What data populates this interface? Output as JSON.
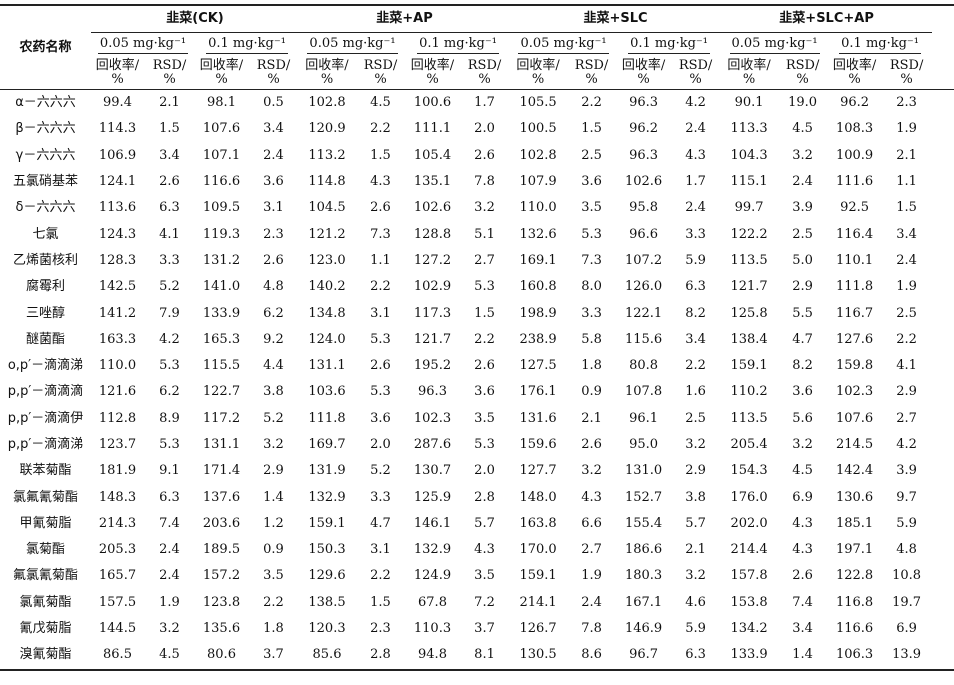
{
  "table": {
    "name_header": "农药名称",
    "groups": [
      "韭菜(CK)",
      "韭菜+AP",
      "韭菜+SLC",
      "韭菜+SLC+AP"
    ],
    "levels": [
      "0.05 mg·kg⁻¹",
      "0.1 mg·kg⁻¹"
    ],
    "metrics": [
      {
        "line1": "回收率/",
        "line2": "%"
      },
      {
        "line1": "RSD/",
        "line2": "%"
      }
    ],
    "rows": [
      {
        "name": "α－六六六",
        "values": [
          "99.4",
          "2.1",
          "98.1",
          "0.5",
          "102.8",
          "4.5",
          "100.6",
          "1.7",
          "105.5",
          "2.2",
          "96.3",
          "4.2",
          "90.1",
          "19.0",
          "96.2",
          "2.3"
        ]
      },
      {
        "name": "β－六六六",
        "values": [
          "114.3",
          "1.5",
          "107.6",
          "3.4",
          "120.9",
          "2.2",
          "111.1",
          "2.0",
          "100.5",
          "1.5",
          "96.2",
          "2.4",
          "113.3",
          "4.5",
          "108.3",
          "1.9"
        ]
      },
      {
        "name": "γ－六六六",
        "values": [
          "106.9",
          "3.4",
          "107.1",
          "2.4",
          "113.2",
          "1.5",
          "105.4",
          "2.6",
          "102.8",
          "2.5",
          "96.3",
          "4.3",
          "104.3",
          "3.2",
          "100.9",
          "2.1"
        ]
      },
      {
        "name": "五氯硝基苯",
        "values": [
          "124.1",
          "2.6",
          "116.6",
          "3.6",
          "114.8",
          "4.3",
          "135.1",
          "7.8",
          "107.9",
          "3.6",
          "102.6",
          "1.7",
          "115.1",
          "2.4",
          "111.6",
          "1.1"
        ]
      },
      {
        "name": "δ－六六六",
        "values": [
          "113.6",
          "6.3",
          "109.5",
          "3.1",
          "104.5",
          "2.6",
          "102.6",
          "3.2",
          "110.0",
          "3.5",
          "95.8",
          "2.4",
          "99.7",
          "3.9",
          "92.5",
          "1.5"
        ]
      },
      {
        "name": "七氯",
        "values": [
          "124.3",
          "4.1",
          "119.3",
          "2.3",
          "121.2",
          "7.3",
          "128.8",
          "5.1",
          "132.6",
          "5.3",
          "96.6",
          "3.3",
          "122.2",
          "2.5",
          "116.4",
          "3.4"
        ]
      },
      {
        "name": "乙烯菌核利",
        "values": [
          "128.3",
          "3.3",
          "131.2",
          "2.6",
          "123.0",
          "1.1",
          "127.2",
          "2.7",
          "169.1",
          "7.3",
          "107.2",
          "5.9",
          "113.5",
          "5.0",
          "110.1",
          "2.4"
        ]
      },
      {
        "name": "腐霉利",
        "values": [
          "142.5",
          "5.2",
          "141.0",
          "4.8",
          "140.2",
          "2.2",
          "102.9",
          "5.3",
          "160.8",
          "8.0",
          "126.0",
          "6.3",
          "121.7",
          "2.9",
          "111.8",
          "1.9"
        ]
      },
      {
        "name": "三唑醇",
        "values": [
          "141.2",
          "7.9",
          "133.9",
          "6.2",
          "134.8",
          "3.1",
          "117.3",
          "1.5",
          "198.9",
          "3.3",
          "122.1",
          "8.2",
          "125.8",
          "5.5",
          "116.7",
          "2.5"
        ]
      },
      {
        "name": "醚菌酯",
        "values": [
          "163.3",
          "4.2",
          "165.3",
          "9.2",
          "124.0",
          "5.3",
          "121.7",
          "2.2",
          "238.9",
          "5.8",
          "115.6",
          "3.4",
          "138.4",
          "4.7",
          "127.6",
          "2.2"
        ]
      },
      {
        "name": "o,p′－滴滴涕",
        "values": [
          "110.0",
          "5.3",
          "115.5",
          "4.4",
          "131.1",
          "2.6",
          "195.2",
          "2.6",
          "127.5",
          "1.8",
          "80.8",
          "2.2",
          "159.1",
          "8.2",
          "159.8",
          "4.1"
        ]
      },
      {
        "name": "p,p′－滴滴滴",
        "values": [
          "121.6",
          "6.2",
          "122.7",
          "3.8",
          "103.6",
          "5.3",
          "96.3",
          "3.6",
          "176.1",
          "0.9",
          "107.8",
          "1.6",
          "110.2",
          "3.6",
          "102.3",
          "2.9"
        ]
      },
      {
        "name": "p,p′－滴滴伊",
        "values": [
          "112.8",
          "8.9",
          "117.2",
          "5.2",
          "111.8",
          "3.6",
          "102.3",
          "3.5",
          "131.6",
          "2.1",
          "96.1",
          "2.5",
          "113.5",
          "5.6",
          "107.6",
          "2.7"
        ]
      },
      {
        "name": "p,p′－滴滴涕",
        "values": [
          "123.7",
          "5.3",
          "131.1",
          "3.2",
          "169.7",
          "2.0",
          "287.6",
          "5.3",
          "159.6",
          "2.6",
          "95.0",
          "3.2",
          "205.4",
          "3.2",
          "214.5",
          "4.2"
        ]
      },
      {
        "name": "联苯菊酯",
        "values": [
          "181.9",
          "9.1",
          "171.4",
          "2.9",
          "131.9",
          "5.2",
          "130.7",
          "2.0",
          "127.7",
          "3.2",
          "131.0",
          "2.9",
          "154.3",
          "4.5",
          "142.4",
          "3.9"
        ]
      },
      {
        "name": "氯氟氰菊酯",
        "values": [
          "148.3",
          "6.3",
          "137.6",
          "1.4",
          "132.9",
          "3.3",
          "125.9",
          "2.8",
          "148.0",
          "4.3",
          "152.7",
          "3.8",
          "176.0",
          "6.9",
          "130.6",
          "9.7"
        ]
      },
      {
        "name": "甲氰菊脂",
        "values": [
          "214.3",
          "7.4",
          "203.6",
          "1.2",
          "159.1",
          "4.7",
          "146.1",
          "5.7",
          "163.8",
          "6.6",
          "155.4",
          "5.7",
          "202.0",
          "4.3",
          "185.1",
          "5.9"
        ]
      },
      {
        "name": "氯菊酯",
        "values": [
          "205.3",
          "2.4",
          "189.5",
          "0.9",
          "150.3",
          "3.1",
          "132.9",
          "4.3",
          "170.0",
          "2.7",
          "186.6",
          "2.1",
          "214.4",
          "4.3",
          "197.1",
          "4.8"
        ]
      },
      {
        "name": "氟氯氰菊酯",
        "values": [
          "165.7",
          "2.4",
          "157.2",
          "3.5",
          "129.6",
          "2.2",
          "124.9",
          "3.5",
          "159.1",
          "1.9",
          "180.3",
          "3.2",
          "157.8",
          "2.6",
          "122.8",
          "10.8"
        ]
      },
      {
        "name": "氯氰菊酯",
        "values": [
          "157.5",
          "1.9",
          "123.8",
          "2.2",
          "138.5",
          "1.5",
          "67.8",
          "7.2",
          "214.1",
          "2.4",
          "167.1",
          "4.6",
          "153.8",
          "7.4",
          "116.8",
          "19.7"
        ]
      },
      {
        "name": "氰戊菊脂",
        "values": [
          "144.5",
          "3.2",
          "135.6",
          "1.8",
          "120.3",
          "2.3",
          "110.3",
          "3.7",
          "126.7",
          "7.8",
          "146.9",
          "5.9",
          "134.2",
          "3.4",
          "116.6",
          "6.9"
        ]
      },
      {
        "name": "溴氰菊酯",
        "values": [
          "86.5",
          "4.5",
          "80.6",
          "3.7",
          "85.6",
          "2.8",
          "94.8",
          "8.1",
          "130.5",
          "8.6",
          "96.7",
          "6.3",
          "133.9",
          "1.4",
          "106.3",
          "13.9"
        ]
      }
    ]
  }
}
